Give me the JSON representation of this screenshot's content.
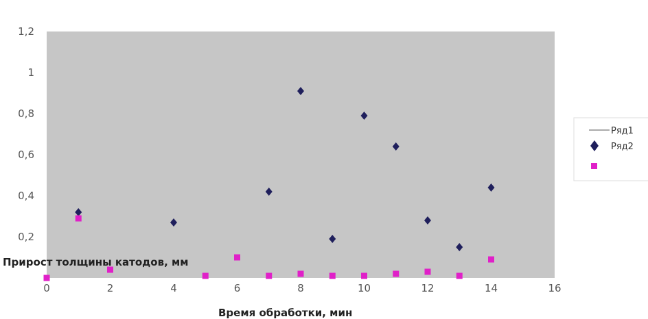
{
  "chart_data": {
    "type": "scatter",
    "title": "",
    "xlabel": "Время обработки, мин",
    "ylabel": "Прирост толщины катодов, мм",
    "xlim": [
      0,
      16
    ],
    "ylim": [
      0,
      1.2
    ],
    "x_ticks": [
      "0",
      "2",
      "4",
      "6",
      "8",
      "10",
      "12",
      "14",
      "16"
    ],
    "y_ticks": [
      "0,2",
      "0,4",
      "0,6",
      "0,8",
      "1",
      "1,2"
    ],
    "grid": false,
    "legend_position": "right",
    "series": [
      {
        "name": "Ряд1",
        "color": "#1f1f5c",
        "marker": "diamond",
        "x": [
          1,
          4,
          7,
          8,
          9,
          10,
          11,
          12,
          13,
          14
        ],
        "y": [
          0.32,
          0.27,
          0.42,
          0.91,
          0.19,
          0.79,
          0.64,
          0.28,
          0.15,
          0.44
        ]
      },
      {
        "name": "Ряд2",
        "color": "#e020c8",
        "marker": "square",
        "x": [
          0,
          1,
          2,
          5,
          6,
          7,
          8,
          9,
          10,
          11,
          12,
          13,
          14
        ],
        "y": [
          0.0,
          0.29,
          0.04,
          0.01,
          0.1,
          0.01,
          0.02,
          0.01,
          0.01,
          0.02,
          0.03,
          0.01,
          0.09
        ]
      }
    ]
  }
}
